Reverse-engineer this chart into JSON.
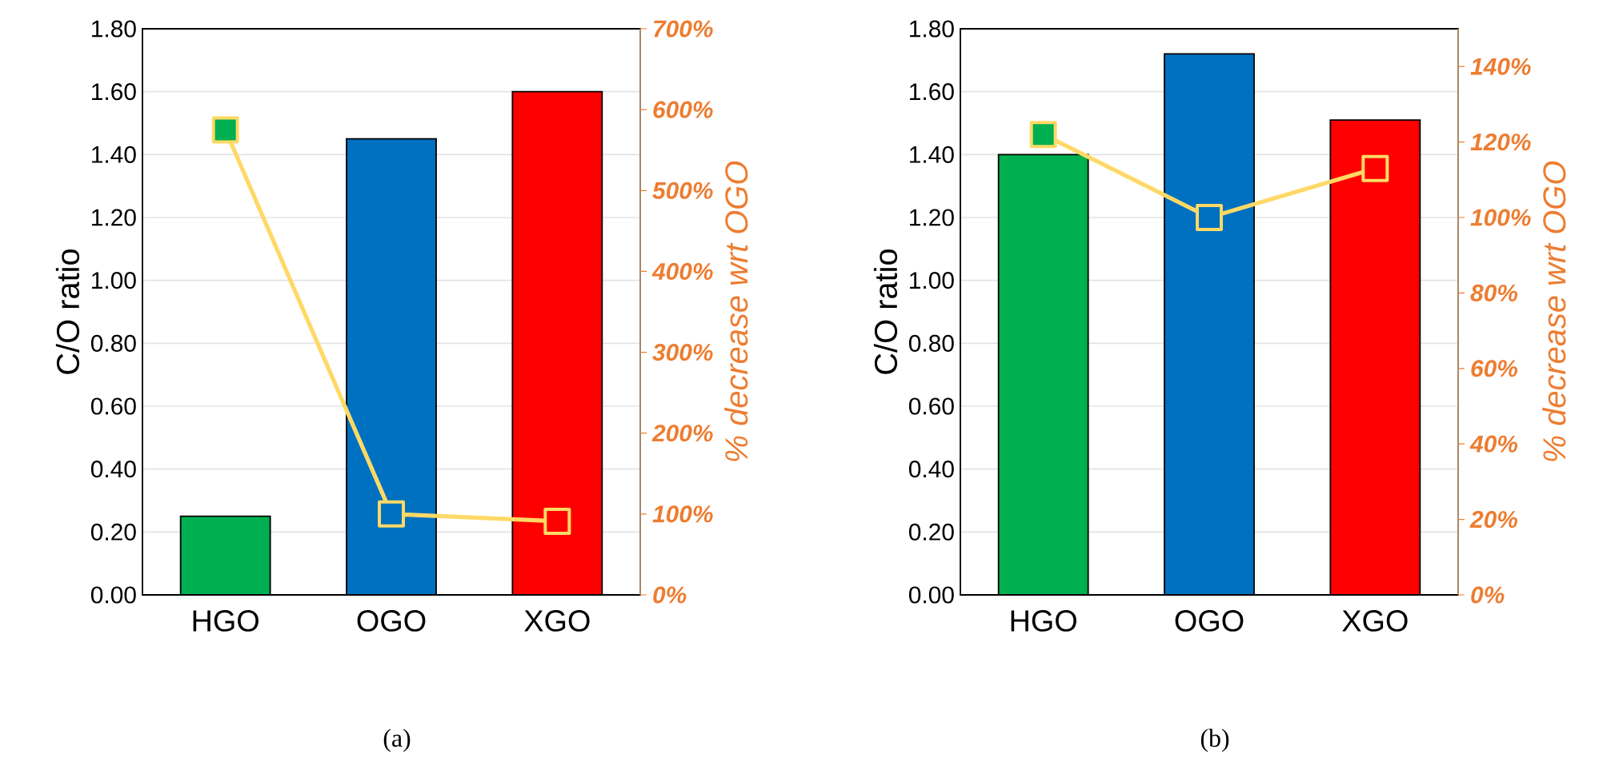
{
  "chart_data": [
    {
      "type": "bar",
      "categories": [
        "HGO",
        "OGO",
        "XGO"
      ],
      "ylabel": "C/O ratio",
      "y2label": "% decrease wrt OGO",
      "ylim": [
        0,
        1.8
      ],
      "yticks": [
        {
          "value": 0,
          "label": "0.00"
        },
        {
          "value": 0.2,
          "label": "0.20"
        },
        {
          "value": 0.4,
          "label": "0.40"
        },
        {
          "value": 0.6,
          "label": "0.60"
        },
        {
          "value": 0.8,
          "label": "0.80"
        },
        {
          "value": 1.0,
          "label": "1.00"
        },
        {
          "value": 1.2,
          "label": "1.20"
        },
        {
          "value": 1.4,
          "label": "1.40"
        },
        {
          "value": 1.6,
          "label": "1.60"
        },
        {
          "value": 1.8,
          "label": "1.80"
        }
      ],
      "y2lim": [
        0,
        700
      ],
      "y2ticks": [
        {
          "value": 0,
          "label": "0%"
        },
        {
          "value": 100,
          "label": "100%"
        },
        {
          "value": 200,
          "label": "200%"
        },
        {
          "value": 300,
          "label": "300%"
        },
        {
          "value": 400,
          "label": "400%"
        },
        {
          "value": 500,
          "label": "500%"
        },
        {
          "value": 600,
          "label": "600%"
        },
        {
          "value": 700,
          "label": "700%"
        }
      ],
      "grid": "y",
      "marker": "square",
      "annotations": [
        "(a)"
      ],
      "series": [
        {
          "values": [
            0.25,
            1.45,
            1.6
          ],
          "colors": [
            "#00b050",
            "#0070c0",
            "#ff0000"
          ]
        },
        {
          "type": "line",
          "axis": "y2",
          "color": "#ffd966",
          "values": [
            575,
            100,
            91
          ],
          "colors": [
            "#00b050",
            "#0070c0",
            "#ff0000"
          ]
        }
      ]
    },
    {
      "type": "bar",
      "categories": [
        "HGO",
        "OGO",
        "XGO"
      ],
      "ylabel": "C/O ratio",
      "y2label": "% decrease wrt OGO",
      "ylim": [
        0,
        1.8
      ],
      "yticks": [
        {
          "value": 0,
          "label": "0.00"
        },
        {
          "value": 0.2,
          "label": "0.20"
        },
        {
          "value": 0.4,
          "label": "0.40"
        },
        {
          "value": 0.6,
          "label": "0.60"
        },
        {
          "value": 0.8,
          "label": "0.80"
        },
        {
          "value": 1.0,
          "label": "1.00"
        },
        {
          "value": 1.2,
          "label": "1.20"
        },
        {
          "value": 1.4,
          "label": "1.40"
        },
        {
          "value": 1.6,
          "label": "1.60"
        },
        {
          "value": 1.8,
          "label": "1.80"
        }
      ],
      "y2lim": [
        0,
        150
      ],
      "y2ticks": [
        {
          "value": 0,
          "label": "0%"
        },
        {
          "value": 20,
          "label": "20%"
        },
        {
          "value": 40,
          "label": "40%"
        },
        {
          "value": 60,
          "label": "60%"
        },
        {
          "value": 80,
          "label": "80%"
        },
        {
          "value": 100,
          "label": "100%"
        },
        {
          "value": 120,
          "label": "120%"
        },
        {
          "value": 140,
          "label": "140%"
        }
      ],
      "grid": "y",
      "marker": "square",
      "annotations": [
        "(b)"
      ],
      "series": [
        {
          "values": [
            1.4,
            1.72,
            1.51
          ],
          "colors": [
            "#00b050",
            "#0070c0",
            "#ff0000"
          ]
        },
        {
          "type": "line",
          "axis": "y2",
          "color": "#ffd966",
          "values": [
            122,
            100,
            113
          ],
          "colors": [
            "#00b050",
            "#0070c0",
            "#ff0000"
          ]
        }
      ]
    }
  ]
}
